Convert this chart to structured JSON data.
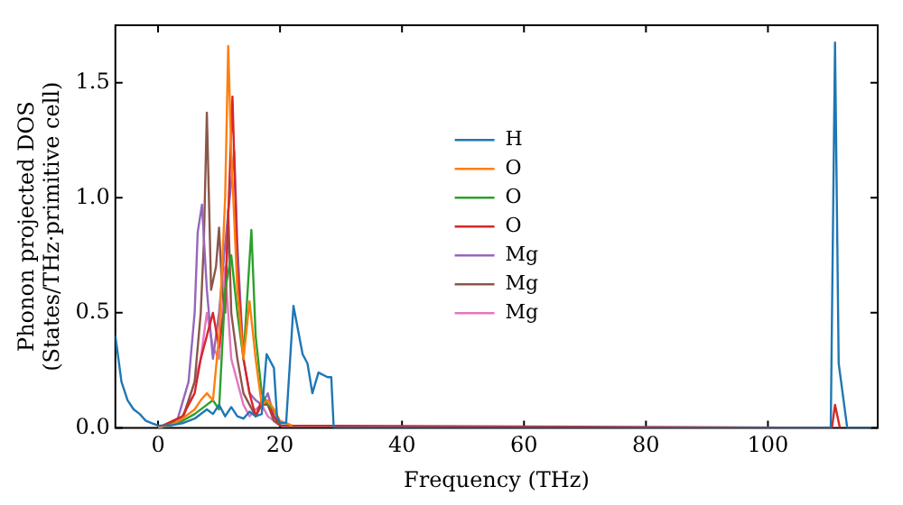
{
  "chart_data": {
    "type": "line",
    "xlabel": "Frequency (THz)",
    "ylabel": "Phonon projected DOS\n(States/THz·primitive cell)",
    "xlim": [
      -7,
      118
    ],
    "ylim": [
      0,
      1.75
    ],
    "xticks": [
      0,
      20,
      40,
      60,
      80,
      100
    ],
    "yticks": [
      {
        "value": 0,
        "label": "0.0"
      },
      0.5,
      {
        "value": 1,
        "label": "1.0"
      },
      1.5
    ],
    "grid": false,
    "legend": "center",
    "marker": "none",
    "line_style": "solid",
    "series": [
      {
        "name": "H",
        "color": "#1f77b4",
        "x": [
          -7,
          -6,
          -5,
          -4,
          -3,
          -2,
          -1,
          0,
          2,
          4,
          6,
          8,
          9,
          10,
          11,
          12,
          13,
          14,
          15,
          16,
          17,
          17.8,
          19,
          19.5,
          20,
          21,
          22.2,
          23.7,
          24.5,
          25.3,
          26.3,
          27.8,
          28.4,
          28.8,
          110.3,
          111,
          111.6,
          113,
          117
        ],
        "values": [
          0.4,
          0.2,
          0.12,
          0.08,
          0.06,
          0.03,
          0.02,
          0.01,
          0.01,
          0.02,
          0.04,
          0.08,
          0.06,
          0.1,
          0.05,
          0.09,
          0.05,
          0.04,
          0.07,
          0.05,
          0.06,
          0.32,
          0.26,
          0.05,
          0.02,
          0.02,
          0.53,
          0.32,
          0.28,
          0.15,
          0.24,
          0.22,
          0.22,
          0,
          0,
          1.675,
          0.28,
          0,
          0
        ]
      },
      {
        "name": "O",
        "color": "#ff7f0e",
        "x": [
          0,
          2,
          4,
          6,
          7,
          8,
          9,
          10,
          11,
          11.5,
          12,
          13,
          14,
          15,
          16,
          17,
          18,
          19,
          20,
          22
        ],
        "values": [
          0,
          0.01,
          0.04,
          0.08,
          0.12,
          0.15,
          0.12,
          0.4,
          1.0,
          1.66,
          1.2,
          0.6,
          0.3,
          0.55,
          0.3,
          0.1,
          0.12,
          0.08,
          0.03,
          0.01
        ]
      },
      {
        "name": "O",
        "color": "#2ca02c",
        "x": [
          0,
          4,
          6,
          8,
          9,
          10,
          11,
          12,
          13,
          14,
          15.3,
          16,
          17,
          18,
          19,
          20
        ],
        "values": [
          0,
          0.03,
          0.06,
          0.1,
          0.12,
          0.08,
          0.6,
          0.75,
          0.5,
          0.3,
          0.86,
          0.4,
          0.15,
          0.1,
          0.08,
          0.02
        ]
      },
      {
        "name": "O",
        "color": "#d62728",
        "x": [
          0,
          4,
          6,
          7,
          8,
          9,
          10,
          11,
          12.2,
          13,
          14,
          15,
          16,
          17,
          18,
          19,
          20,
          110.5,
          111,
          111.8
        ],
        "values": [
          0,
          0.05,
          0.15,
          0.3,
          0.4,
          0.5,
          0.35,
          0.55,
          1.44,
          0.7,
          0.3,
          0.15,
          0.05,
          0.12,
          0.1,
          0.05,
          0.01,
          0,
          0.1,
          0
        ]
      },
      {
        "name": "Mg",
        "color": "#9467bd",
        "x": [
          0,
          3,
          5,
          6,
          6.5,
          7.2,
          8,
          9,
          10,
          11,
          12.5,
          13,
          14,
          15,
          16,
          17,
          18,
          19,
          20
        ],
        "values": [
          0,
          0.02,
          0.2,
          0.5,
          0.85,
          0.97,
          0.6,
          0.3,
          0.5,
          0.8,
          1.2,
          0.8,
          0.3,
          0.15,
          0.12,
          0.1,
          0.15,
          0.05,
          0.01
        ]
      },
      {
        "name": "Mg",
        "color": "#8c564b",
        "x": [
          0,
          4,
          6,
          7,
          7.5,
          8,
          8.7,
          9.5,
          10,
          10.5,
          11,
          11.5,
          12,
          13,
          14,
          15,
          16,
          17,
          18,
          19,
          20
        ],
        "values": [
          0,
          0.04,
          0.2,
          0.5,
          0.8,
          1.37,
          0.6,
          0.7,
          0.87,
          0.6,
          0.5,
          0.95,
          0.5,
          0.3,
          0.15,
          0.1,
          0.05,
          0.1,
          0.1,
          0.03,
          0.01
        ]
      },
      {
        "name": "Mg",
        "color": "#e377c2",
        "x": [
          0,
          4,
          6,
          7,
          8,
          9,
          10,
          11,
          12,
          13,
          14,
          15,
          16,
          17,
          18,
          20
        ],
        "values": [
          0,
          0.03,
          0.2,
          0.3,
          0.5,
          0.35,
          0.3,
          0.7,
          0.3,
          0.2,
          0.1,
          0.05,
          0.08,
          0.1,
          0.05,
          0.01
        ]
      }
    ]
  }
}
